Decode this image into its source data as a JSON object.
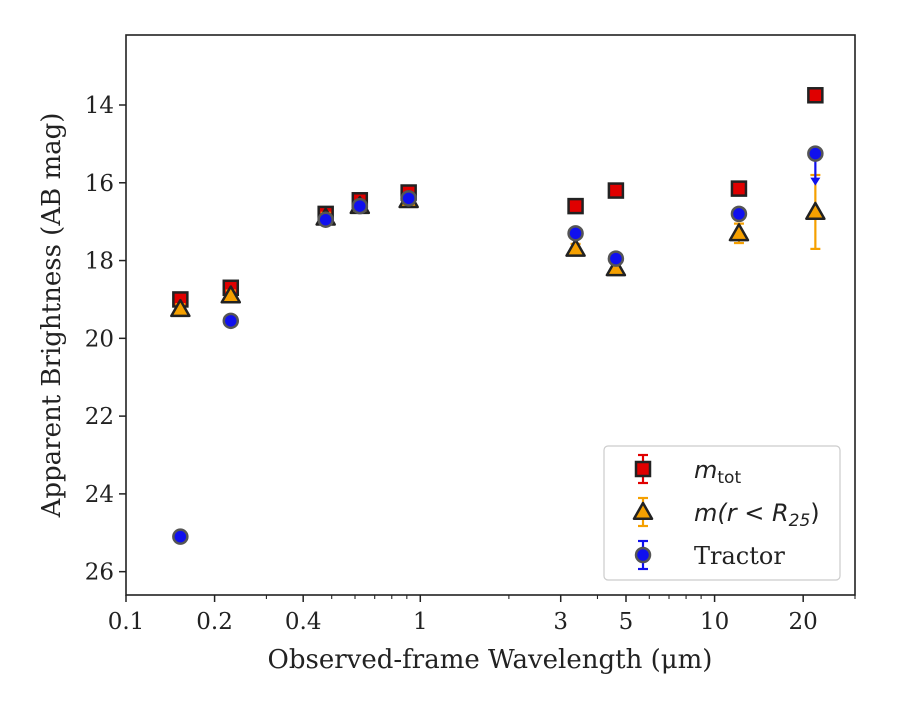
{
  "chart_data": {
    "type": "scatter",
    "xlabel": "Observed-frame Wavelength (μm)",
    "ylabel": "Apparent Brightness (AB mag)",
    "xscale": "log",
    "xlim": [
      0.1,
      30
    ],
    "ylim": [
      26.6,
      12.2
    ],
    "y_inverted": true,
    "grid": false,
    "legend_position": "lower-right",
    "xticks": [
      {
        "value": 0.1,
        "label": "0.1"
      },
      {
        "value": 0.2,
        "label": "0.2"
      },
      {
        "value": 0.4,
        "label": "0.4"
      },
      {
        "value": 1,
        "label": "1"
      },
      {
        "value": 3,
        "label": "3"
      },
      {
        "value": 5,
        "label": "5"
      },
      {
        "value": 10,
        "label": "10"
      },
      {
        "value": 20,
        "label": "20"
      }
    ],
    "yticks": [
      {
        "value": 14,
        "label": "14"
      },
      {
        "value": 16,
        "label": "16"
      },
      {
        "value": 18,
        "label": "18"
      },
      {
        "value": 20,
        "label": "20"
      },
      {
        "value": 22,
        "label": "22"
      },
      {
        "value": 24,
        "label": "24"
      },
      {
        "value": 26,
        "label": "26"
      }
    ],
    "series": [
      {
        "name": "m_tot",
        "legend_main": "m",
        "legend_sub": "tot",
        "marker": "square",
        "color": "#e00000",
        "points": [
          {
            "x": 0.153,
            "y": 19.0,
            "err": 0.08
          },
          {
            "x": 0.227,
            "y": 18.7,
            "err": 0.08
          },
          {
            "x": 0.477,
            "y": 16.8,
            "err": 0.05
          },
          {
            "x": 0.623,
            "y": 16.45,
            "err": 0.05
          },
          {
            "x": 0.913,
            "y": 16.25,
            "err": 0.05
          },
          {
            "x": 3.37,
            "y": 16.6,
            "err": 0.05
          },
          {
            "x": 4.62,
            "y": 16.2,
            "err": 0.05
          },
          {
            "x": 12.1,
            "y": 16.15,
            "err": 0.05
          },
          {
            "x": 22.0,
            "y": 13.75,
            "err": 0.05
          }
        ]
      },
      {
        "name": "m(r < R25)",
        "legend_main": "m(r < R",
        "legend_sub": "25",
        "legend_close": ")",
        "marker": "triangle",
        "color": "#f5a000",
        "points": [
          {
            "x": 0.153,
            "y": 19.25,
            "err": 0.08
          },
          {
            "x": 0.227,
            "y": 18.9,
            "err": 0.08
          },
          {
            "x": 0.477,
            "y": 16.9,
            "err": 0.05
          },
          {
            "x": 0.623,
            "y": 16.6,
            "err": 0.05
          },
          {
            "x": 0.913,
            "y": 16.45,
            "err": 0.05
          },
          {
            "x": 3.37,
            "y": 17.7,
            "err": 0.05
          },
          {
            "x": 4.62,
            "y": 18.2,
            "err": 0.05
          },
          {
            "x": 12.1,
            "y": 17.3,
            "err": 0.25
          },
          {
            "x": 22.0,
            "y": 16.75,
            "err": 0.95
          }
        ]
      },
      {
        "name": "Tractor",
        "legend_main": "Tractor",
        "marker": "circle",
        "color": "#1010ee",
        "points": [
          {
            "x": 0.153,
            "y": 25.1,
            "err": 0.1
          },
          {
            "x": 0.227,
            "y": 19.55,
            "err": 0.1
          },
          {
            "x": 0.477,
            "y": 16.95,
            "err": 0.05
          },
          {
            "x": 0.623,
            "y": 16.6,
            "err": 0.05
          },
          {
            "x": 0.913,
            "y": 16.4,
            "err": 0.05
          },
          {
            "x": 3.37,
            "y": 17.3,
            "err": 0.05
          },
          {
            "x": 4.62,
            "y": 17.95,
            "err": 0.05
          },
          {
            "x": 12.1,
            "y": 16.8,
            "err": 0.05
          },
          {
            "x": 22.0,
            "y": 15.25,
            "err": 0.05,
            "upper_limit": true
          }
        ]
      }
    ]
  }
}
